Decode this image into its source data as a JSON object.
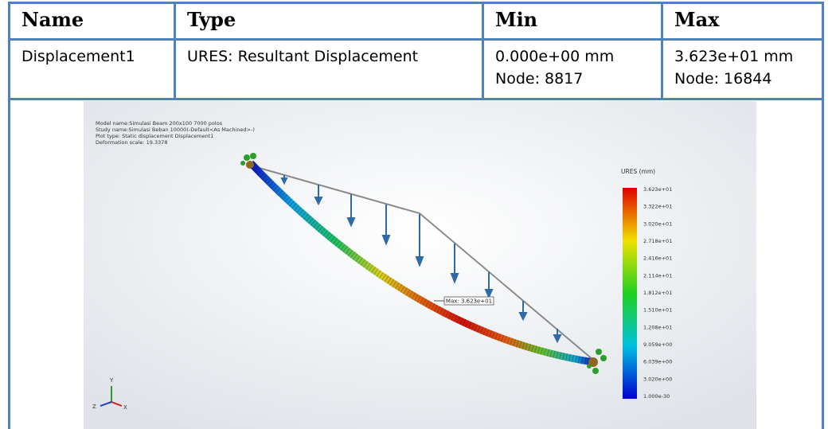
{
  "table": {
    "headers": [
      "Name",
      "Type",
      "Min",
      "Max"
    ],
    "rows": [
      [
        "Displacement1",
        "URES: Resultant Displacement",
        [
          "0.000e+00 mm",
          "Node: 8817"
        ],
        [
          "3.623e+01 mm",
          "Node: 16844"
        ]
      ]
    ]
  },
  "figure": {
    "info": [
      "Model name:Simulasi Beam 200x100 7000 polos",
      "Study name:Simulasi Beban 10000(-Default<As Machined>-)",
      "Plot type: Static displacement Displacement1",
      "Deformation scale: 19.3378"
    ],
    "legend_title": "URES (mm)",
    "legend_labels": [
      "3.623e+01",
      "3.322e+01",
      "3.020e+01",
      "2.718e+01",
      "2.416e+01",
      "2.114e+01",
      "1.812e+01",
      "1.510e+01",
      "1.208e+01",
      "9.059e+00",
      "6.039e+00",
      "3.020e+00",
      "1.000e-30"
    ],
    "max_label": "Max: 3.623e+01",
    "axes": [
      "Y",
      "Z",
      "X"
    ]
  }
}
